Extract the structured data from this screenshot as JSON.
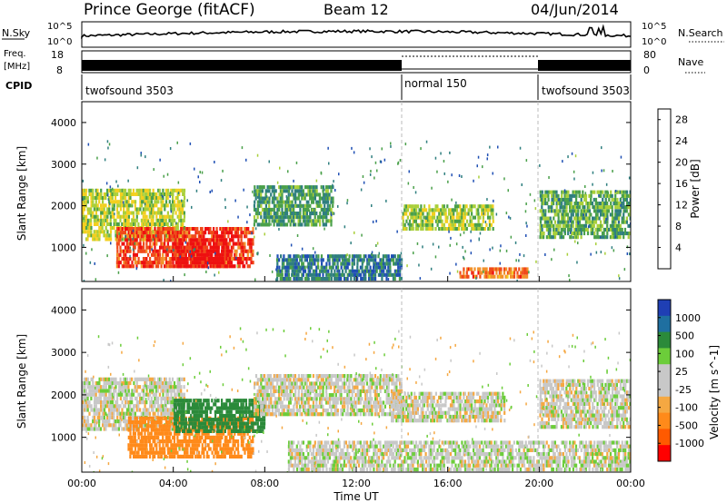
{
  "header": {
    "station": "Prince George (fitACF)",
    "beam": "Beam 12",
    "date": "04/Jun/2014"
  },
  "top_panels": {
    "nsky_label": "N.Sky",
    "nsky_ticks": [
      "10^5",
      "10^0"
    ],
    "nsearch_label": "N.Search",
    "nsearch_ticks": [
      "10^5",
      "10^0"
    ],
    "freq_label_1": "Freq.",
    "freq_label_2": "[MHz]",
    "freq_ticks": [
      "18",
      "8"
    ],
    "nave_label": "Nave",
    "nave_ticks": [
      "80",
      "0"
    ],
    "cpid_label": "CPID",
    "cpid_segments": [
      {
        "label": "twofsound 3503",
        "start_h": 0,
        "end_h": 14
      },
      {
        "label": "normal 150",
        "start_h": 14,
        "end_h": 20
      },
      {
        "label": "twofsound 3503",
        "start_h": 20,
        "end_h": 24
      }
    ]
  },
  "colors": {
    "power_scale": [
      "#1a1aff",
      "#1f4fb4",
      "#2f7f7f",
      "#4aa04a",
      "#a9cf3a",
      "#f3cf1f",
      "#f2912a",
      "#f04a1a",
      "#ee1010"
    ],
    "velocity_scale": [
      "#ff0000",
      "#ff5a00",
      "#ff8a1a",
      "#f5a842",
      "#c8c8c8",
      "#c8c8c8",
      "#6ccd3a",
      "#2b8a3a",
      "#1f6fa0",
      "#1f3fb4"
    ]
  },
  "chart_data": [
    {
      "type": "heatmap",
      "title": "Power",
      "xlabel": "",
      "ylabel": "Slant Range [km]",
      "xlim_hours": [
        0,
        24
      ],
      "ylim_km": [
        180,
        4500
      ],
      "y_ticks": [
        "1000",
        "2000",
        "3000",
        "4000"
      ],
      "colorbar_label": "Power [dB]",
      "colorbar_ticks": [
        "4",
        "8",
        "12",
        "16",
        "20",
        "24",
        "28"
      ],
      "colorbar_range": [
        0,
        30
      ],
      "regions": [
        {
          "t0": 0.0,
          "t1": 4.5,
          "r0": 1150,
          "r1": 2400,
          "value": 16
        },
        {
          "t0": 1.5,
          "t1": 7.5,
          "r0": 500,
          "r1": 1500,
          "value": 26
        },
        {
          "t0": 4.0,
          "t1": 6.5,
          "r0": 500,
          "r1": 1200,
          "value": 29
        },
        {
          "t0": 7.5,
          "t1": 11.0,
          "r0": 1500,
          "r1": 2500,
          "value": 11
        },
        {
          "t0": 8.5,
          "t1": 14.0,
          "r0": 200,
          "r1": 800,
          "value": 8
        },
        {
          "t0": 14.0,
          "t1": 18.0,
          "r0": 1400,
          "r1": 2000,
          "value": 15
        },
        {
          "t0": 16.5,
          "t1": 19.5,
          "r0": 250,
          "r1": 550,
          "value": 23
        },
        {
          "t0": 20.0,
          "t1": 24.0,
          "r0": 1200,
          "r1": 2400,
          "value": 12
        }
      ]
    },
    {
      "type": "heatmap",
      "title": "Velocity",
      "xlabel": "Time UT",
      "ylabel": "Slant Range [km]",
      "xlim_hours": [
        0,
        24
      ],
      "ylim_km": [
        180,
        4500
      ],
      "x_ticks": [
        "00:00",
        "04:00",
        "08:00",
        "12:00",
        "16:00",
        "20:00",
        "00:00"
      ],
      "y_ticks": [
        "1000",
        "2000",
        "3000",
        "4000"
      ],
      "colorbar_label": "Velocity [m s^-1]",
      "colorbar_ticks": [
        "1000",
        "500",
        "100",
        "25",
        "-25",
        "-100",
        "-500",
        "-1000"
      ],
      "regions": [
        {
          "t0": 0.0,
          "t1": 4.5,
          "r0": 1150,
          "r1": 2400,
          "value": 0
        },
        {
          "t0": 2.0,
          "t1": 7.5,
          "r0": 500,
          "r1": 1500,
          "value": -200
        },
        {
          "t0": 4.0,
          "t1": 8.0,
          "r0": 1100,
          "r1": 1900,
          "value": 150
        },
        {
          "t0": 7.5,
          "t1": 14.0,
          "r0": 1500,
          "r1": 2500,
          "value": 0
        },
        {
          "t0": 9.0,
          "t1": 24.0,
          "r0": 200,
          "r1": 900,
          "value": 5
        },
        {
          "t0": 13.5,
          "t1": 18.5,
          "r0": 1350,
          "r1": 2100,
          "value": 0
        },
        {
          "t0": 20.0,
          "t1": 24.0,
          "r0": 1200,
          "r1": 2400,
          "value": 0
        }
      ]
    }
  ]
}
